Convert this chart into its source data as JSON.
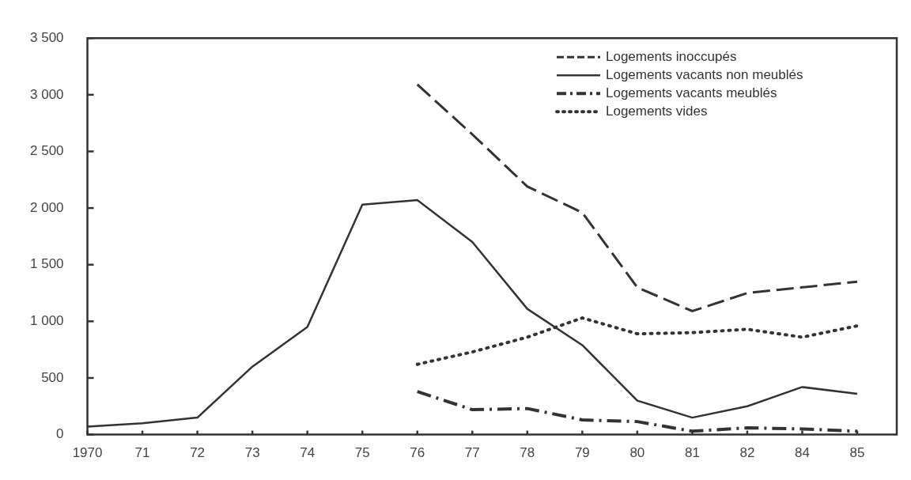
{
  "chart_data": {
    "type": "line",
    "categories": [
      "1970",
      "71",
      "72",
      "73",
      "74",
      "75",
      "76",
      "77",
      "78",
      "79",
      "80",
      "81",
      "82",
      "84",
      "85"
    ],
    "ylim": [
      0,
      3500
    ],
    "yticks": [
      {
        "value": 0,
        "label": "0"
      },
      {
        "value": 500,
        "label": "500"
      },
      {
        "value": 1000,
        "label": "1 000"
      },
      {
        "value": 1500,
        "label": "1 500"
      },
      {
        "value": 2000,
        "label": "2 000"
      },
      {
        "value": 2500,
        "label": "2 500"
      },
      {
        "value": 3000,
        "label": "3 000"
      },
      {
        "value": 3500,
        "label": "3 500"
      }
    ],
    "legend": "top right",
    "marker": "none",
    "grid": false,
    "series": [
      {
        "name": "Logements inoccupés",
        "color": "#333333",
        "line_style": "dashed",
        "values": [
          null,
          null,
          null,
          null,
          null,
          null,
          3090,
          2650,
          2190,
          1960,
          1300,
          1090,
          1250,
          1300,
          1350
        ]
      },
      {
        "name": "Logements vacants non meublés",
        "color": "#333333",
        "line_style": "solid",
        "values": [
          70,
          100,
          150,
          600,
          950,
          2030,
          2070,
          1700,
          1110,
          790,
          300,
          150,
          250,
          420,
          360
        ]
      },
      {
        "name": "Logements vacants meublés",
        "color": "#333333",
        "line_style": "dashdot",
        "values": [
          null,
          null,
          null,
          null,
          null,
          null,
          380,
          220,
          230,
          130,
          115,
          30,
          60,
          50,
          30
        ]
      },
      {
        "name": "Logements vides",
        "color": "#333333",
        "line_style": "dotted",
        "values": [
          null,
          null,
          null,
          null,
          null,
          null,
          620,
          730,
          860,
          1030,
          890,
          900,
          930,
          860,
          960
        ]
      }
    ]
  }
}
